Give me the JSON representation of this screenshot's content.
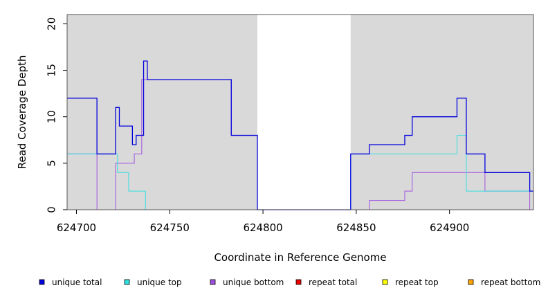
{
  "chart_data": {
    "type": "line",
    "xlabel": "Coordinate in Reference Genome",
    "ylabel": "Read Coverage Depth",
    "xlim": [
      624695,
      624945
    ],
    "ylim": [
      0,
      21
    ],
    "x_ticks": [
      624700,
      624750,
      624800,
      624850,
      624900
    ],
    "y_ticks": [
      0,
      5,
      10,
      15,
      20
    ],
    "shaded_regions": [
      [
        624695,
        624797
      ],
      [
        624847,
        624945
      ]
    ],
    "colors": {
      "shade": "#d9d9d9",
      "unique_total": "#0000dd",
      "unique_top": "#33e0e0",
      "unique_bottom": "#a050e0",
      "repeat_total": "#ee0000",
      "repeat_top": "#ffff00",
      "repeat_bottom": "#ffa500"
    },
    "series": [
      {
        "name": "unique total",
        "key": "unique_total",
        "points": [
          [
            624695,
            12
          ],
          [
            624711,
            12
          ],
          [
            624711,
            6
          ],
          [
            624721,
            6
          ],
          [
            624721,
            11
          ],
          [
            624723,
            11
          ],
          [
            624723,
            9
          ],
          [
            624730,
            9
          ],
          [
            624730,
            7
          ],
          [
            624732,
            7
          ],
          [
            624732,
            8
          ],
          [
            624736,
            8
          ],
          [
            624736,
            16
          ],
          [
            624738,
            16
          ],
          [
            624738,
            14
          ],
          [
            624783,
            14
          ],
          [
            624783,
            8
          ],
          [
            624797,
            8
          ],
          [
            624797,
            0
          ],
          [
            624847,
            0
          ],
          [
            624847,
            6
          ],
          [
            624857,
            6
          ],
          [
            624857,
            7
          ],
          [
            624876,
            7
          ],
          [
            624876,
            8
          ],
          [
            624880,
            8
          ],
          [
            624880,
            10
          ],
          [
            624904,
            10
          ],
          [
            624904,
            12
          ],
          [
            624909,
            12
          ],
          [
            624909,
            6
          ],
          [
            624919,
            6
          ],
          [
            624919,
            4
          ],
          [
            624943,
            4
          ],
          [
            624943,
            2
          ],
          [
            624945,
            2
          ]
        ]
      },
      {
        "name": "unique top",
        "key": "unique_top",
        "points": [
          [
            624695,
            6
          ],
          [
            624722,
            6
          ],
          [
            624722,
            4
          ],
          [
            624728,
            4
          ],
          [
            624728,
            2
          ],
          [
            624737,
            2
          ],
          [
            624737,
            0
          ],
          [
            624847,
            0
          ],
          [
            624847,
            6
          ],
          [
            624904,
            6
          ],
          [
            624904,
            8
          ],
          [
            624909,
            8
          ],
          [
            624909,
            2
          ],
          [
            624945,
            2
          ]
        ]
      },
      {
        "name": "unique bottom",
        "key": "unique_bottom",
        "points": [
          [
            624695,
            6
          ],
          [
            624711,
            6
          ],
          [
            624711,
            0
          ],
          [
            624721,
            0
          ],
          [
            624721,
            5
          ],
          [
            624731,
            5
          ],
          [
            624731,
            6
          ],
          [
            624735,
            6
          ],
          [
            624735,
            14
          ],
          [
            624783,
            14
          ],
          [
            624783,
            8
          ],
          [
            624797,
            8
          ],
          [
            624797,
            0
          ],
          [
            624857,
            0
          ],
          [
            624857,
            1
          ],
          [
            624876,
            1
          ],
          [
            624876,
            2
          ],
          [
            624880,
            2
          ],
          [
            624880,
            4
          ],
          [
            624919,
            4
          ],
          [
            624919,
            2
          ],
          [
            624943,
            2
          ],
          [
            624943,
            0
          ],
          [
            624945,
            0
          ]
        ]
      },
      {
        "name": "repeat total",
        "key": "repeat_total",
        "points": [
          [
            624695,
            0
          ],
          [
            624945,
            0
          ]
        ]
      },
      {
        "name": "repeat top",
        "key": "repeat_top",
        "points": [
          [
            624695,
            0
          ],
          [
            624945,
            0
          ]
        ]
      },
      {
        "name": "repeat bottom",
        "key": "repeat_bottom",
        "points": [
          [
            624695,
            0
          ],
          [
            624945,
            0
          ]
        ]
      }
    ],
    "legend": {
      "placement": "bottom",
      "entries": [
        {
          "label": "unique total",
          "key": "unique_total"
        },
        {
          "label": "unique top",
          "key": "unique_top"
        },
        {
          "label": "unique bottom",
          "key": "unique_bottom"
        },
        {
          "label": "repeat total",
          "key": "repeat_total"
        },
        {
          "label": "repeat top",
          "key": "repeat_top"
        },
        {
          "label": "repeat bottom",
          "key": "repeat_bottom"
        }
      ]
    }
  }
}
